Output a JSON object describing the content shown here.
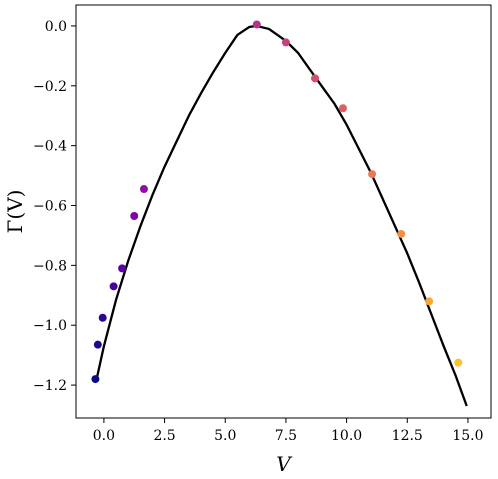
{
  "chart_data": {
    "type": "scatter",
    "title": "",
    "xlabel": "V",
    "ylabel": "Γ(V)",
    "xlim": [
      -1.15,
      15.95
    ],
    "ylim": [
      -1.31,
      0.07
    ],
    "x_ticks": [
      0.0,
      2.5,
      5.0,
      7.5,
      10.0,
      12.5,
      15.0
    ],
    "x_tick_labels": [
      "0.0",
      "2.5",
      "5.0",
      "7.5",
      "10.0",
      "12.5",
      "15.0"
    ],
    "y_ticks": [
      0.0,
      -0.2,
      -0.4,
      -0.6,
      -0.8,
      -1.0,
      -1.2
    ],
    "y_tick_labels": [
      "0.0",
      "−0.2",
      "−0.4",
      "−0.6",
      "−0.8",
      "−1.0",
      "−1.2"
    ],
    "grid": false,
    "legend": "none",
    "curve": {
      "color": "#000000",
      "points": [
        [
          -0.3,
          -1.18
        ],
        [
          0.0,
          -1.07
        ],
        [
          0.5,
          -0.915
        ],
        [
          1.0,
          -0.785
        ],
        [
          1.5,
          -0.67
        ],
        [
          2.0,
          -0.565
        ],
        [
          2.5,
          -0.47
        ],
        [
          3.0,
          -0.385
        ],
        [
          3.5,
          -0.3
        ],
        [
          4.0,
          -0.225
        ],
        [
          4.5,
          -0.155
        ],
        [
          5.0,
          -0.09
        ],
        [
          5.5,
          -0.03
        ],
        [
          6.0,
          -0.003
        ],
        [
          6.3,
          0.0
        ],
        [
          6.8,
          -0.01
        ],
        [
          7.5,
          -0.05
        ],
        [
          8.0,
          -0.09
        ],
        [
          8.7,
          -0.17
        ],
        [
          9.5,
          -0.26
        ],
        [
          10.0,
          -0.33
        ],
        [
          10.5,
          -0.41
        ],
        [
          11.0,
          -0.49
        ],
        [
          11.5,
          -0.58
        ],
        [
          12.0,
          -0.67
        ],
        [
          12.5,
          -0.76
        ],
        [
          13.0,
          -0.86
        ],
        [
          13.5,
          -0.965
        ],
        [
          14.0,
          -1.07
        ],
        [
          14.5,
          -1.17
        ],
        [
          14.95,
          -1.27
        ]
      ]
    },
    "points": [
      {
        "x": -0.35,
        "y": -1.18,
        "color": "#0d0887"
      },
      {
        "x": -0.25,
        "y": -1.065,
        "color": "#1a0a8e"
      },
      {
        "x": -0.05,
        "y": -0.975,
        "color": "#2c0594"
      },
      {
        "x": 0.4,
        "y": -0.87,
        "color": "#47039f"
      },
      {
        "x": 0.75,
        "y": -0.81,
        "color": "#5c01a6"
      },
      {
        "x": 1.25,
        "y": -0.635,
        "color": "#7e03a8"
      },
      {
        "x": 1.65,
        "y": -0.545,
        "color": "#8f0da4"
      },
      {
        "x": 6.3,
        "y": 0.005,
        "color": "#b83289"
      },
      {
        "x": 7.5,
        "y": -0.055,
        "color": "#c5407e"
      },
      {
        "x": 8.7,
        "y": -0.175,
        "color": "#d24f71"
      },
      {
        "x": 9.85,
        "y": -0.275,
        "color": "#dd5e66"
      },
      {
        "x": 11.05,
        "y": -0.495,
        "color": "#ec7853"
      },
      {
        "x": 12.25,
        "y": -0.695,
        "color": "#f68f44"
      },
      {
        "x": 13.4,
        "y": -0.92,
        "color": "#fca636"
      },
      {
        "x": 14.6,
        "y": -1.125,
        "color": "#fcc229"
      }
    ]
  }
}
